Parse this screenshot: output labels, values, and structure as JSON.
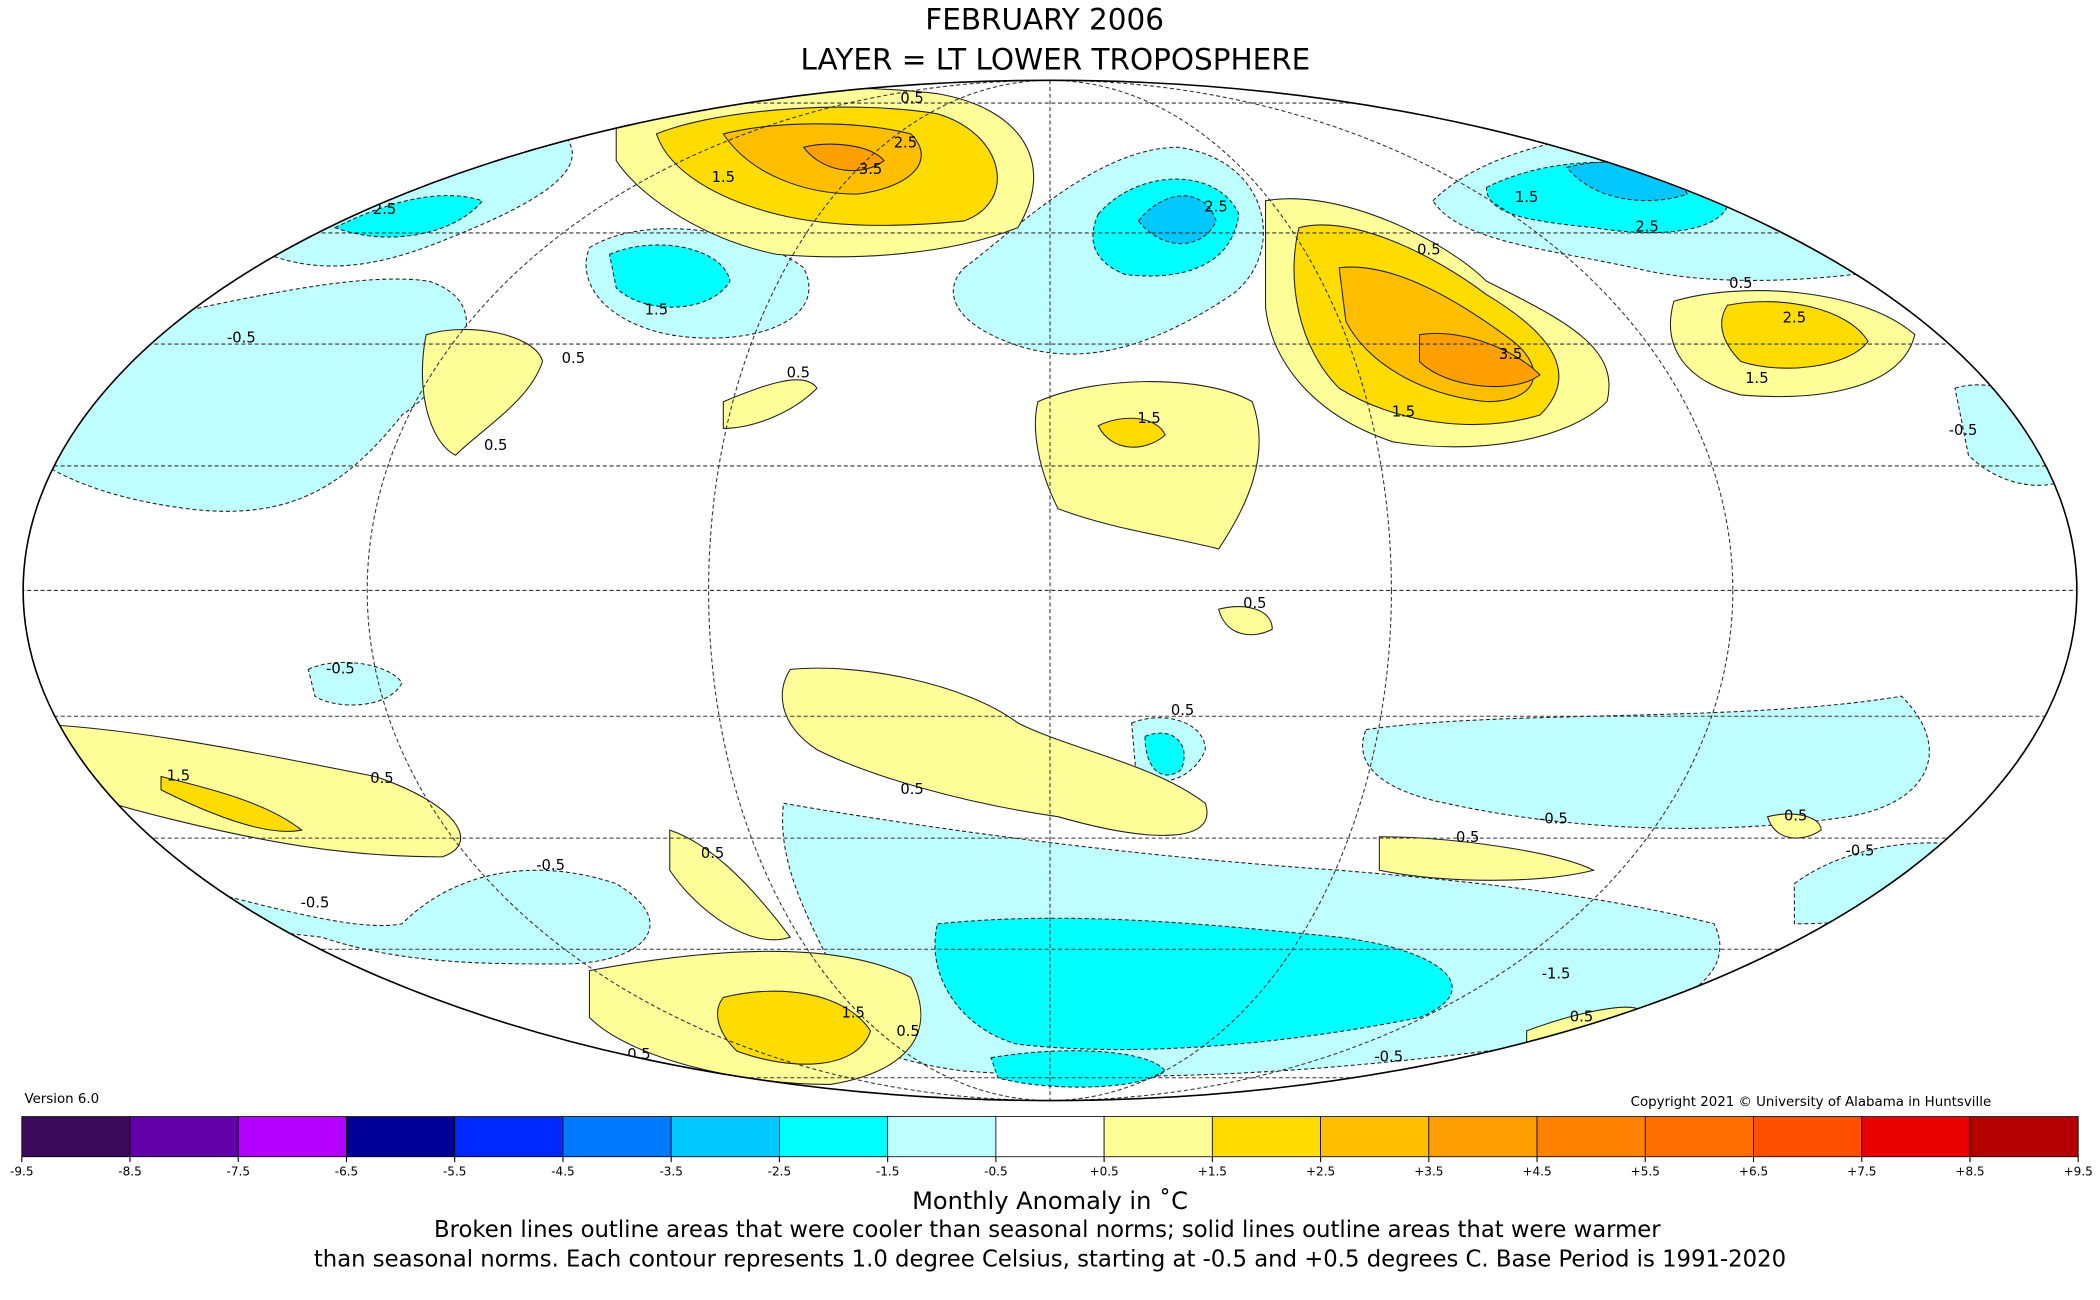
{
  "header": {
    "title": "FEBRUARY 2006",
    "subtitle": "LAYER = LT LOWER TROPOSPHERE"
  },
  "map": {
    "contour_labels": [
      "2.5",
      "1.5",
      "3.5",
      "2.5",
      "0.5",
      "2.5",
      "1.5",
      "2.5",
      "0.5",
      "0.5",
      "2.5",
      "1.5",
      "3.5",
      "1.5",
      "-0.5",
      "1.5",
      "0.5",
      "0.5",
      "0.5",
      "1.5",
      "-0.5",
      "0.5",
      "-0.5",
      "0.5",
      "1.5",
      "0.5",
      "0.5",
      "-0.5",
      "0.5",
      "0.5",
      "-0.5",
      "-0.5",
      "-0.5",
      "0.5",
      "-1.5",
      "0.5",
      "1.5",
      "0.5",
      "0.5",
      "-0.5"
    ]
  },
  "version": "Version 6.0",
  "copyright": "Copyright 2021 © University of Alabama in Huntsville",
  "colorbar": {
    "title": "Monthly Anomaly in ˚C",
    "colors": [
      "#3c0a5a",
      "#6400aa",
      "#b400ff",
      "#000096",
      "#0028ff",
      "#0078ff",
      "#00c8ff",
      "#00ffff",
      "#c0ffff",
      "#ffffff",
      "#ffff99",
      "#ffdc00",
      "#ffbe00",
      "#ffa000",
      "#ff8200",
      "#ff6e00",
      "#ff5000",
      "#e60000",
      "#b40000"
    ],
    "ticks": [
      -9.5,
      -8.5,
      -7.5,
      -6.5,
      -5.5,
      -4.5,
      -3.5,
      -2.5,
      -1.5,
      -0.5,
      {
        "value": 0.5,
        "label": "+0.5"
      },
      {
        "value": 1.5,
        "label": "+1.5"
      },
      {
        "value": 2.5,
        "label": "+2.5"
      },
      {
        "value": 3.5,
        "label": "+3.5"
      },
      {
        "value": 4.5,
        "label": "+4.5"
      },
      {
        "value": 5.5,
        "label": "+5.5"
      },
      {
        "value": 6.5,
        "label": "+6.5"
      },
      {
        "value": 7.5,
        "label": "+7.5"
      },
      {
        "value": 8.5,
        "label": "+8.5"
      },
      {
        "value": 9.5,
        "label": "+9.5"
      }
    ]
  },
  "caption": [
    "Broken lines outline areas that were cooler than seasonal norms; solid lines outline areas that were warmer",
    "than seasonal norms. Each contour represents 1.0 degree Celsius, starting at -0.5 and +0.5 degrees C. Base Period is 1991-2020"
  ]
}
